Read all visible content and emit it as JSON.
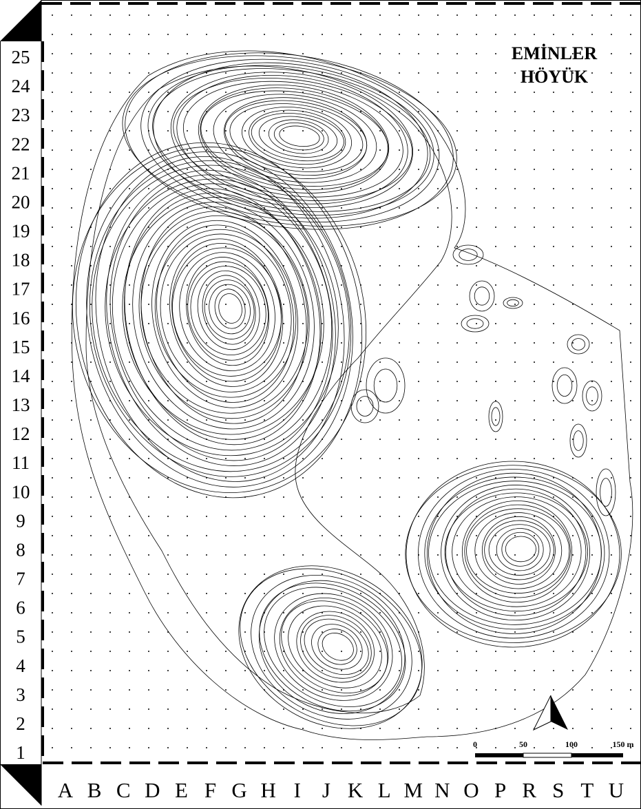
{
  "map": {
    "title": [
      "EMİNLER",
      "HÖYÜK"
    ],
    "rows": [
      25,
      24,
      23,
      22,
      21,
      20,
      19,
      18,
      17,
      16,
      15,
      14,
      13,
      12,
      11,
      10,
      9,
      8,
      7,
      6,
      5,
      4,
      3,
      2,
      1
    ],
    "columns": [
      "A",
      "B",
      "C",
      "D",
      "E",
      "F",
      "G",
      "H",
      "I",
      "J",
      "K",
      "L",
      "M",
      "N",
      "O",
      "P",
      "R",
      "S",
      "T",
      "U"
    ],
    "scale": [
      "0",
      "50",
      "100",
      "150 m"
    ]
  }
}
